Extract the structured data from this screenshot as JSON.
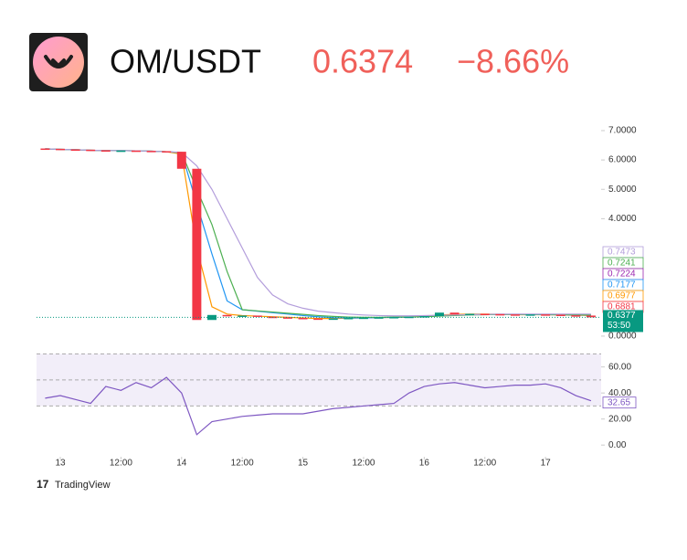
{
  "header": {
    "pair": "OM/USDT",
    "price": "0.6374",
    "change": "−8.66%"
  },
  "brand": "TradingView",
  "chart_data": [
    {
      "type": "candlestick",
      "x": [
        -3,
        0,
        3,
        6,
        9,
        12,
        15,
        18,
        21,
        24,
        27,
        30,
        33,
        36,
        39,
        42,
        45,
        48,
        51,
        54,
        57,
        60,
        63,
        66,
        69,
        72,
        75,
        78,
        81,
        84,
        87,
        90,
        93,
        96,
        99,
        102,
        105
      ],
      "open": [
        6.39,
        6.38,
        6.36,
        6.35,
        6.33,
        6.32,
        6.32,
        6.31,
        6.3,
        6.28,
        5.7,
        0.55,
        0.72,
        0.68,
        0.7,
        0.66,
        0.64,
        0.62,
        0.6,
        0.58,
        0.6,
        0.62,
        0.63,
        0.64,
        0.65,
        0.66,
        0.68,
        0.8,
        0.74,
        0.76,
        0.75,
        0.74,
        0.72,
        0.74,
        0.73,
        0.71,
        0.7
      ],
      "close": [
        6.38,
        6.36,
        6.35,
        6.33,
        6.32,
        6.32,
        6.31,
        6.3,
        6.28,
        5.7,
        0.55,
        0.72,
        0.68,
        0.7,
        0.66,
        0.64,
        0.62,
        0.6,
        0.58,
        0.6,
        0.62,
        0.63,
        0.64,
        0.65,
        0.66,
        0.68,
        0.8,
        0.74,
        0.76,
        0.75,
        0.74,
        0.72,
        0.74,
        0.73,
        0.71,
        0.7,
        0.64
      ],
      "up_color": "#089981",
      "down_color": "#f23645",
      "series": [
        {
          "color": "#ff9800",
          "values": [
            6.38,
            6.36,
            6.35,
            6.33,
            6.32,
            6.32,
            6.31,
            6.3,
            6.28,
            6.2,
            3.0,
            1.0,
            0.75,
            0.7,
            0.68,
            0.66,
            0.64,
            0.62,
            0.6,
            0.6,
            0.61,
            0.62,
            0.63,
            0.64,
            0.65,
            0.67,
            0.72,
            0.74,
            0.75,
            0.75,
            0.74,
            0.73,
            0.73,
            0.73,
            0.72,
            0.71,
            0.7
          ]
        },
        {
          "color": "#2196f3",
          "values": [
            6.38,
            6.36,
            6.35,
            6.33,
            6.32,
            6.32,
            6.31,
            6.3,
            6.28,
            6.25,
            4.5,
            2.8,
            1.2,
            0.9,
            0.85,
            0.8,
            0.75,
            0.7,
            0.66,
            0.63,
            0.62,
            0.62,
            0.63,
            0.64,
            0.65,
            0.66,
            0.69,
            0.71,
            0.73,
            0.74,
            0.74,
            0.74,
            0.74,
            0.73,
            0.73,
            0.72,
            0.72
          ]
        },
        {
          "color": "#4caf50",
          "values": [
            6.38,
            6.36,
            6.35,
            6.33,
            6.32,
            6.32,
            6.31,
            6.3,
            6.28,
            6.25,
            5.0,
            3.8,
            2.2,
            0.9,
            0.86,
            0.82,
            0.78,
            0.74,
            0.7,
            0.67,
            0.65,
            0.64,
            0.64,
            0.65,
            0.65,
            0.66,
            0.68,
            0.7,
            0.72,
            0.73,
            0.74,
            0.74,
            0.74,
            0.74,
            0.73,
            0.73,
            0.72
          ]
        },
        {
          "color": "#b39ddb",
          "values": [
            6.38,
            6.36,
            6.35,
            6.33,
            6.32,
            6.32,
            6.31,
            6.3,
            6.28,
            6.26,
            5.8,
            5.0,
            4.0,
            3.0,
            2.0,
            1.4,
            1.1,
            0.95,
            0.85,
            0.8,
            0.75,
            0.72,
            0.7,
            0.69,
            0.69,
            0.7,
            0.71,
            0.72,
            0.73,
            0.74,
            0.75,
            0.75,
            0.75,
            0.75,
            0.75,
            0.75,
            0.75
          ]
        }
      ],
      "xlim": [
        -4.7,
        107
      ],
      "ylim": [
        -0.22,
        7.31
      ],
      "yticks": [
        {
          "value": 7,
          "label": "7.0000"
        },
        {
          "value": 6,
          "label": "6.0000"
        },
        {
          "value": 5,
          "label": "5.0000"
        },
        {
          "value": 4,
          "label": "4.0000"
        },
        {
          "value": 0,
          "label": "0.0000"
        }
      ],
      "price_labels": [
        {
          "value": 0.7473,
          "color": "#b39ddb"
        },
        {
          "value": 0.7241,
          "color": "#4caf50"
        },
        {
          "value": 0.7224,
          "color": "#9c27b0"
        },
        {
          "value": 0.7177,
          "color": "#2196f3"
        },
        {
          "value": 0.6977,
          "color": "#ff9800"
        },
        {
          "value": 0.6881,
          "color": "#f23645"
        }
      ],
      "last_price": 0.6377,
      "last_color": "#089981",
      "countdown": "53:50"
    },
    {
      "type": "line",
      "x": [
        -3,
        0,
        3,
        6,
        9,
        12,
        15,
        18,
        21,
        24,
        27,
        30,
        33,
        36,
        39,
        42,
        45,
        48,
        51,
        54,
        57,
        60,
        63,
        66,
        69,
        72,
        75,
        78,
        81,
        84,
        87,
        90,
        93,
        96,
        99,
        102,
        105
      ],
      "series": [
        {
          "color": "#7e57c2",
          "values": [
            36,
            38,
            35,
            32,
            45,
            42,
            48,
            44,
            52,
            40,
            8,
            18,
            20,
            22,
            23,
            24,
            24,
            24,
            26,
            28,
            29,
            30,
            31,
            32,
            40,
            45,
            47,
            48,
            46,
            44,
            45,
            46,
            46,
            47,
            44,
            38,
            34
          ]
        }
      ],
      "bands": [
        30,
        50,
        70
      ],
      "last_value": 32.65,
      "xlim": [
        -4.7,
        107
      ],
      "ylim": [
        -9,
        71
      ],
      "yticks": [
        {
          "value": 60,
          "label": "60.00"
        },
        {
          "value": 40,
          "label": "40.00"
        },
        {
          "value": 20,
          "label": "20.00"
        },
        {
          "value": 0,
          "label": "0.00"
        }
      ],
      "xticks": [
        {
          "value": 0,
          "label": "13"
        },
        {
          "value": 12,
          "label": "12:00"
        },
        {
          "value": 24,
          "label": "14"
        },
        {
          "value": 36,
          "label": "12:00"
        },
        {
          "value": 48,
          "label": "15"
        },
        {
          "value": 60,
          "label": "12:00"
        },
        {
          "value": 72,
          "label": "16"
        },
        {
          "value": 84,
          "label": "12:00"
        },
        {
          "value": 96,
          "label": "17"
        }
      ]
    }
  ]
}
